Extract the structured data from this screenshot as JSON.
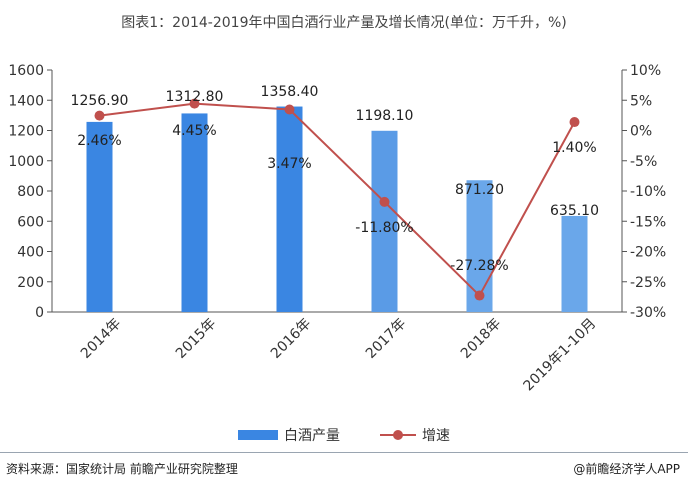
{
  "header": {
    "title": "图表1：2014-2019年中国白酒行业产量及增长情况(单位：万千升，%)"
  },
  "chart_data": {
    "type": "bar",
    "categories": [
      "2014年",
      "2015年",
      "2016年",
      "2017年",
      "2018年",
      "2019年1-10月"
    ],
    "series": [
      {
        "name": "白酒产量",
        "type": "bar",
        "axis": "left",
        "values": [
          1256.9,
          1312.8,
          1358.4,
          1198.1,
          871.2,
          635.1
        ],
        "labels": [
          "1256.90",
          "1312.80",
          "1358.40",
          "1198.10",
          "871.20",
          "635.10"
        ],
        "colors": [
          "#3a86e2",
          "#3a86e2",
          "#3a86e2",
          "#5a9be6",
          "#6aa7ea",
          "#6aa7ea"
        ]
      },
      {
        "name": "增速",
        "type": "line",
        "axis": "right",
        "values": [
          2.46,
          4.45,
          3.47,
          -11.8,
          -27.28,
          1.4
        ],
        "labels": [
          "2.46%",
          "4.45%",
          "3.47%",
          "-11.80%",
          "-27.28%",
          "1.40%"
        ],
        "color": "#c0504d"
      }
    ],
    "y_left": {
      "min": 0,
      "max": 1600,
      "ticks": [
        "0",
        "200",
        "400",
        "600",
        "800",
        "1000",
        "1200",
        "1400",
        "1600"
      ]
    },
    "y_right": {
      "min": -30,
      "max": 10,
      "ticks": [
        "-30%",
        "-25%",
        "-20%",
        "-15%",
        "-10%",
        "-5%",
        "0%",
        "5%",
        "10%"
      ]
    },
    "grid": false,
    "legend_position": "bottom"
  },
  "legend": {
    "bar": "白酒产量",
    "line": "增速"
  },
  "footer": {
    "source": "资料来源：国家统计局 前瞻产业研究院整理",
    "app": "@前瞻经济学人APP"
  }
}
